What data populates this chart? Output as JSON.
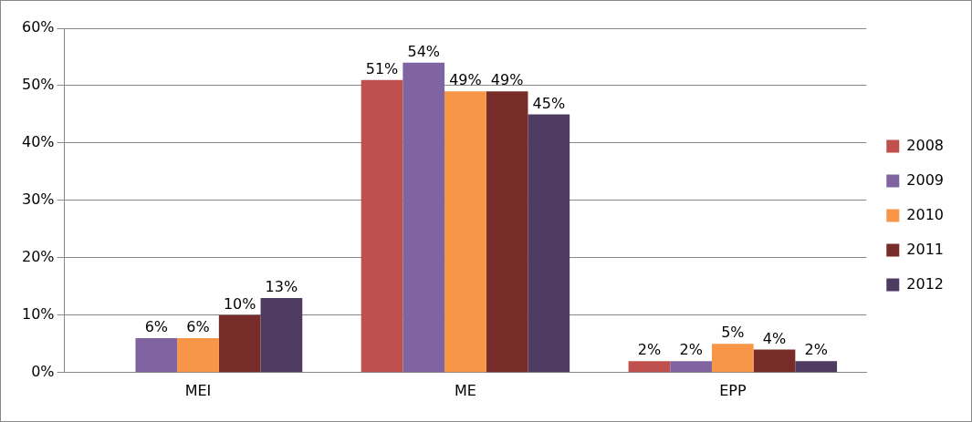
{
  "chart_data": {
    "type": "bar",
    "categories": [
      "MEI",
      "ME",
      "EPP"
    ],
    "series": [
      {
        "name": "2008",
        "color": "#c0504d",
        "values": [
          null,
          51,
          2
        ],
        "value_labels": [
          null,
          "51%",
          "2%"
        ]
      },
      {
        "name": "2009",
        "color": "#8064a2",
        "values": [
          6,
          54,
          2
        ],
        "value_labels": [
          "6%",
          "54%",
          "2%"
        ]
      },
      {
        "name": "2010",
        "color": "#f79646",
        "values": [
          6,
          49,
          5
        ],
        "value_labels": [
          "6%",
          "49%",
          "5%"
        ]
      },
      {
        "name": "2011",
        "color": "#772c2a",
        "values": [
          10,
          49,
          4
        ],
        "value_labels": [
          "10%",
          "49%",
          "4%"
        ]
      },
      {
        "name": "2012",
        "color": "#4d3b62",
        "values": [
          13,
          45,
          2
        ],
        "value_labels": [
          "13%",
          "45%",
          "2%"
        ]
      }
    ],
    "ylim": [
      0,
      60
    ],
    "yticks": [
      {
        "value": 0,
        "label": "0%"
      },
      {
        "value": 10,
        "label": "10%"
      },
      {
        "value": 20,
        "label": "20%"
      },
      {
        "value": 30,
        "label": "30%"
      },
      {
        "value": 40,
        "label": "40%"
      },
      {
        "value": 50,
        "label": "50%"
      },
      {
        "value": 60,
        "label": "60%"
      }
    ],
    "grid": "y",
    "legend": "right"
  }
}
